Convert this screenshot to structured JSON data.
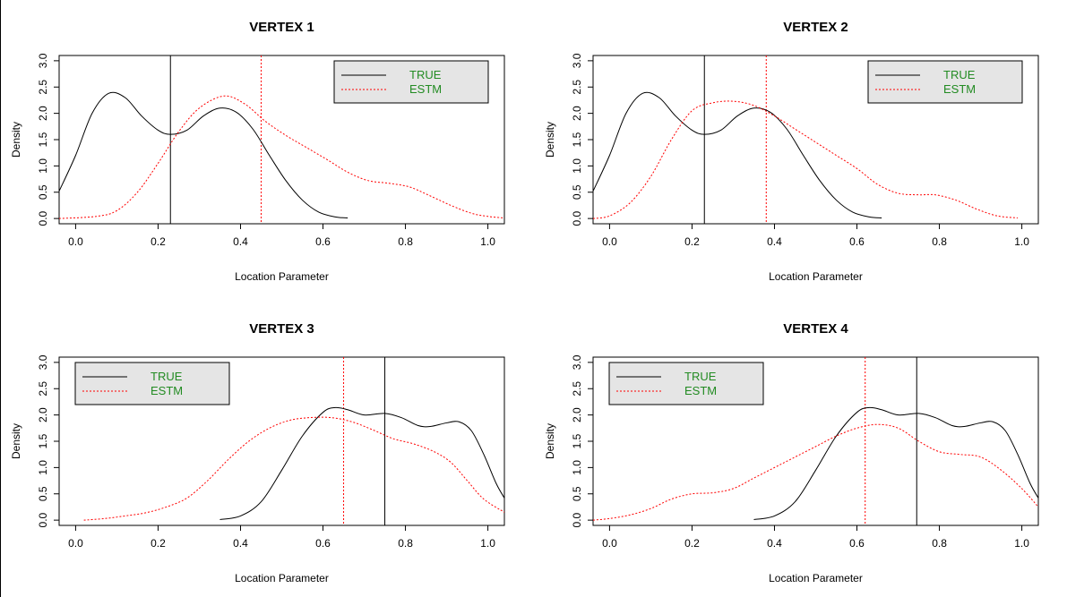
{
  "colors": {
    "true_line": "#000000",
    "estm_line": "#ff0000",
    "legend_bg": "#e5e5e5",
    "legend_text": "#228b22"
  },
  "chart_data": [
    {
      "type": "line",
      "title": "VERTEX 1",
      "xlabel": "Location Parameter",
      "ylabel": "Density",
      "xlim": [
        -0.04,
        1.04
      ],
      "ylim": [
        -0.1,
        3.1
      ],
      "x_ticks": [
        "0.0",
        "0.2",
        "0.4",
        "0.6",
        "0.8",
        "1.0"
      ],
      "y_ticks": [
        "0.0",
        "0.5",
        "1.0",
        "1.5",
        "2.0",
        "2.5",
        "3.0"
      ],
      "legend_position": "top-right",
      "legend": [
        "TRUE",
        "ESTM"
      ],
      "vlines": [
        {
          "series": "TRUE",
          "x": 0.23
        },
        {
          "series": "ESTM",
          "x": 0.45
        }
      ],
      "series": [
        {
          "name": "TRUE",
          "style": "solid",
          "color": "#000000",
          "points": [
            [
              -0.04,
              0.52
            ],
            [
              0.0,
              1.2
            ],
            [
              0.04,
              2.0
            ],
            [
              0.08,
              2.38
            ],
            [
              0.12,
              2.3
            ],
            [
              0.16,
              1.95
            ],
            [
              0.2,
              1.68
            ],
            [
              0.23,
              1.6
            ],
            [
              0.27,
              1.68
            ],
            [
              0.31,
              1.95
            ],
            [
              0.35,
              2.1
            ],
            [
              0.39,
              2.02
            ],
            [
              0.43,
              1.7
            ],
            [
              0.47,
              1.2
            ],
            [
              0.51,
              0.72
            ],
            [
              0.55,
              0.35
            ],
            [
              0.59,
              0.12
            ],
            [
              0.63,
              0.03
            ],
            [
              0.66,
              0.01
            ]
          ]
        },
        {
          "name": "ESTM",
          "style": "dotted",
          "color": "#ff0000",
          "points": [
            [
              -0.04,
              0.0
            ],
            [
              0.05,
              0.04
            ],
            [
              0.1,
              0.15
            ],
            [
              0.15,
              0.5
            ],
            [
              0.2,
              1.05
            ],
            [
              0.25,
              1.65
            ],
            [
              0.3,
              2.1
            ],
            [
              0.36,
              2.33
            ],
            [
              0.41,
              2.18
            ],
            [
              0.46,
              1.85
            ],
            [
              0.51,
              1.58
            ],
            [
              0.56,
              1.35
            ],
            [
              0.61,
              1.12
            ],
            [
              0.66,
              0.88
            ],
            [
              0.71,
              0.72
            ],
            [
              0.76,
              0.67
            ],
            [
              0.81,
              0.6
            ],
            [
              0.86,
              0.43
            ],
            [
              0.91,
              0.25
            ],
            [
              0.96,
              0.1
            ],
            [
              1.0,
              0.04
            ],
            [
              1.04,
              0.01
            ]
          ]
        }
      ]
    },
    {
      "type": "line",
      "title": "VERTEX 2",
      "xlabel": "Location Parameter",
      "ylabel": "Density",
      "xlim": [
        -0.04,
        1.04
      ],
      "ylim": [
        -0.1,
        3.1
      ],
      "x_ticks": [
        "0.0",
        "0.2",
        "0.4",
        "0.6",
        "0.8",
        "1.0"
      ],
      "y_ticks": [
        "0.0",
        "0.5",
        "1.0",
        "1.5",
        "2.0",
        "2.5",
        "3.0"
      ],
      "legend_position": "top-right",
      "legend": [
        "TRUE",
        "ESTM"
      ],
      "vlines": [
        {
          "series": "TRUE",
          "x": 0.23
        },
        {
          "series": "ESTM",
          "x": 0.38
        }
      ],
      "series": [
        {
          "name": "TRUE",
          "style": "solid",
          "color": "#000000",
          "points": [
            [
              -0.04,
              0.52
            ],
            [
              0.0,
              1.2
            ],
            [
              0.04,
              2.0
            ],
            [
              0.08,
              2.38
            ],
            [
              0.12,
              2.3
            ],
            [
              0.16,
              1.95
            ],
            [
              0.2,
              1.68
            ],
            [
              0.23,
              1.6
            ],
            [
              0.27,
              1.68
            ],
            [
              0.31,
              1.95
            ],
            [
              0.35,
              2.1
            ],
            [
              0.39,
              2.02
            ],
            [
              0.43,
              1.7
            ],
            [
              0.47,
              1.2
            ],
            [
              0.51,
              0.72
            ],
            [
              0.55,
              0.35
            ],
            [
              0.59,
              0.12
            ],
            [
              0.63,
              0.03
            ],
            [
              0.66,
              0.01
            ]
          ]
        },
        {
          "name": "ESTM",
          "style": "dotted",
          "color": "#ff0000",
          "points": [
            [
              -0.04,
              0.0
            ],
            [
              0.0,
              0.05
            ],
            [
              0.05,
              0.3
            ],
            [
              0.1,
              0.8
            ],
            [
              0.15,
              1.5
            ],
            [
              0.2,
              2.05
            ],
            [
              0.25,
              2.2
            ],
            [
              0.3,
              2.23
            ],
            [
              0.35,
              2.15
            ],
            [
              0.4,
              1.95
            ],
            [
              0.45,
              1.7
            ],
            [
              0.5,
              1.45
            ],
            [
              0.55,
              1.2
            ],
            [
              0.6,
              0.95
            ],
            [
              0.65,
              0.65
            ],
            [
              0.7,
              0.48
            ],
            [
              0.75,
              0.45
            ],
            [
              0.79,
              0.45
            ],
            [
              0.84,
              0.35
            ],
            [
              0.89,
              0.18
            ],
            [
              0.94,
              0.05
            ],
            [
              0.99,
              0.01
            ]
          ]
        }
      ]
    },
    {
      "type": "line",
      "title": "VERTEX 3",
      "xlabel": "Location Parameter",
      "ylabel": "Density",
      "xlim": [
        -0.04,
        1.04
      ],
      "ylim": [
        -0.1,
        3.1
      ],
      "x_ticks": [
        "0.0",
        "0.2",
        "0.4",
        "0.6",
        "0.8",
        "1.0"
      ],
      "y_ticks": [
        "0.0",
        "0.5",
        "1.0",
        "1.5",
        "2.0",
        "2.5",
        "3.0"
      ],
      "legend_position": "top-left",
      "legend": [
        "TRUE",
        "ESTM"
      ],
      "vlines": [
        {
          "series": "TRUE",
          "x": 0.75
        },
        {
          "series": "ESTM",
          "x": 0.65
        }
      ],
      "series": [
        {
          "name": "TRUE",
          "style": "solid",
          "color": "#000000",
          "points": [
            [
              0.35,
              0.01
            ],
            [
              0.4,
              0.08
            ],
            [
              0.45,
              0.35
            ],
            [
              0.5,
              0.95
            ],
            [
              0.55,
              1.6
            ],
            [
              0.6,
              2.05
            ],
            [
              0.63,
              2.14
            ],
            [
              0.66,
              2.1
            ],
            [
              0.7,
              2.0
            ],
            [
              0.75,
              2.03
            ],
            [
              0.79,
              1.95
            ],
            [
              0.83,
              1.8
            ],
            [
              0.86,
              1.78
            ],
            [
              0.9,
              1.85
            ],
            [
              0.93,
              1.87
            ],
            [
              0.96,
              1.7
            ],
            [
              0.99,
              1.25
            ],
            [
              1.02,
              0.7
            ],
            [
              1.04,
              0.42
            ]
          ]
        },
        {
          "name": "ESTM",
          "style": "dotted",
          "color": "#ff0000",
          "points": [
            [
              0.02,
              0.0
            ],
            [
              0.07,
              0.03
            ],
            [
              0.12,
              0.08
            ],
            [
              0.17,
              0.14
            ],
            [
              0.22,
              0.25
            ],
            [
              0.27,
              0.42
            ],
            [
              0.32,
              0.75
            ],
            [
              0.37,
              1.15
            ],
            [
              0.42,
              1.5
            ],
            [
              0.47,
              1.75
            ],
            [
              0.52,
              1.9
            ],
            [
              0.57,
              1.95
            ],
            [
              0.62,
              1.95
            ],
            [
              0.67,
              1.87
            ],
            [
              0.72,
              1.72
            ],
            [
              0.77,
              1.55
            ],
            [
              0.82,
              1.45
            ],
            [
              0.87,
              1.3
            ],
            [
              0.91,
              1.1
            ],
            [
              0.95,
              0.75
            ],
            [
              0.99,
              0.4
            ],
            [
              1.04,
              0.15
            ]
          ]
        }
      ]
    },
    {
      "type": "line",
      "title": "VERTEX 4",
      "xlabel": "Location Parameter",
      "ylabel": "Density",
      "xlim": [
        -0.04,
        1.04
      ],
      "ylim": [
        -0.1,
        3.1
      ],
      "x_ticks": [
        "0.0",
        "0.2",
        "0.4",
        "0.6",
        "0.8",
        "1.0"
      ],
      "y_ticks": [
        "0.0",
        "0.5",
        "1.0",
        "1.5",
        "2.0",
        "2.5",
        "3.0"
      ],
      "legend_position": "top-left",
      "legend": [
        "TRUE",
        "ESTM"
      ],
      "vlines": [
        {
          "series": "TRUE",
          "x": 0.745
        },
        {
          "series": "ESTM",
          "x": 0.62
        }
      ],
      "series": [
        {
          "name": "TRUE",
          "style": "solid",
          "color": "#000000",
          "points": [
            [
              0.35,
              0.01
            ],
            [
              0.4,
              0.08
            ],
            [
              0.45,
              0.35
            ],
            [
              0.5,
              0.95
            ],
            [
              0.55,
              1.6
            ],
            [
              0.6,
              2.05
            ],
            [
              0.63,
              2.14
            ],
            [
              0.66,
              2.1
            ],
            [
              0.7,
              2.0
            ],
            [
              0.75,
              2.03
            ],
            [
              0.79,
              1.95
            ],
            [
              0.83,
              1.8
            ],
            [
              0.86,
              1.78
            ],
            [
              0.9,
              1.85
            ],
            [
              0.93,
              1.87
            ],
            [
              0.96,
              1.7
            ],
            [
              0.99,
              1.25
            ],
            [
              1.02,
              0.7
            ],
            [
              1.04,
              0.42
            ]
          ]
        },
        {
          "name": "ESTM",
          "style": "dotted",
          "color": "#ff0000",
          "points": [
            [
              -0.04,
              0.0
            ],
            [
              0.0,
              0.03
            ],
            [
              0.05,
              0.1
            ],
            [
              0.1,
              0.22
            ],
            [
              0.15,
              0.4
            ],
            [
              0.2,
              0.5
            ],
            [
              0.25,
              0.52
            ],
            [
              0.3,
              0.6
            ],
            [
              0.35,
              0.8
            ],
            [
              0.4,
              1.0
            ],
            [
              0.45,
              1.2
            ],
            [
              0.5,
              1.4
            ],
            [
              0.55,
              1.6
            ],
            [
              0.6,
              1.75
            ],
            [
              0.65,
              1.82
            ],
            [
              0.7,
              1.75
            ],
            [
              0.75,
              1.5
            ],
            [
              0.8,
              1.3
            ],
            [
              0.85,
              1.25
            ],
            [
              0.9,
              1.2
            ],
            [
              0.95,
              0.95
            ],
            [
              1.0,
              0.6
            ],
            [
              1.04,
              0.25
            ]
          ]
        }
      ]
    }
  ]
}
